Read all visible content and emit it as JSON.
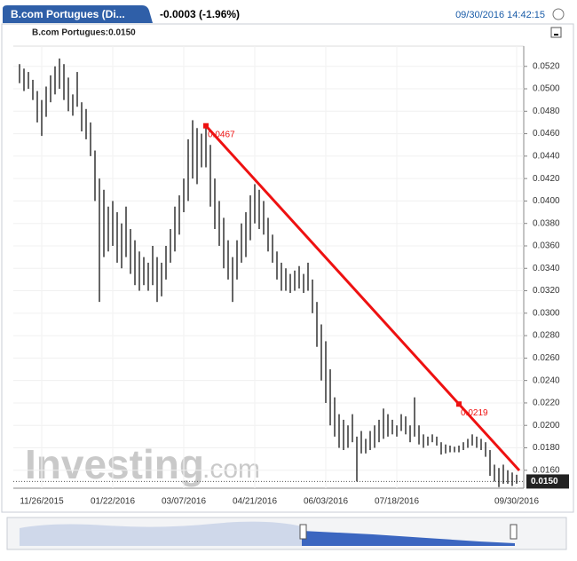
{
  "header": {
    "instrument": "B.com Portugues (Di...",
    "change": "-0.0003 (-1.96%)",
    "timestamp": "09/30/2016 14:42:15",
    "legend": "B.com Portugues:0.0150"
  },
  "chart_data": {
    "type": "ohlc",
    "watermark": "Investing",
    "watermark_suffix": ".com",
    "color": "#000000",
    "grid": true,
    "categories": [
      null,
      null,
      null,
      null,
      null,
      "11/26/2015",
      null,
      null,
      null,
      null,
      null,
      null,
      null,
      null,
      null,
      null,
      null,
      null,
      null,
      null,
      null,
      "01/22/2016",
      null,
      null,
      null,
      null,
      null,
      null,
      null,
      null,
      null,
      null,
      null,
      null,
      null,
      null,
      null,
      "03/07/2016",
      null,
      null,
      null,
      null,
      null,
      null,
      null,
      null,
      null,
      null,
      null,
      null,
      null,
      null,
      null,
      "04/21/2016",
      null,
      null,
      null,
      null,
      null,
      null,
      null,
      null,
      null,
      null,
      null,
      null,
      null,
      null,
      null,
      "06/03/2016",
      null,
      null,
      null,
      null,
      null,
      null,
      null,
      null,
      null,
      null,
      null,
      null,
      null,
      null,
      null,
      "07/18/2016",
      null,
      null,
      null,
      null,
      null,
      null,
      null,
      null,
      null,
      null,
      null,
      null,
      null,
      null,
      null,
      null,
      null,
      null,
      null,
      null,
      null,
      null,
      null,
      null,
      null,
      null,
      "09/30/2016"
    ],
    "high": [
      0.0522,
      0.0518,
      0.0515,
      0.0508,
      0.0498,
      0.049,
      0.0502,
      0.0512,
      0.052,
      0.0527,
      0.0522,
      0.051,
      0.0495,
      0.0515,
      0.0488,
      0.0482,
      0.047,
      0.0445,
      0.042,
      0.041,
      0.0395,
      0.04,
      0.039,
      0.038,
      0.0395,
      0.0375,
      0.0365,
      0.0355,
      0.035,
      0.0345,
      0.036,
      0.035,
      0.0345,
      0.036,
      0.0375,
      0.0395,
      0.0405,
      0.042,
      0.0455,
      0.0472,
      0.0465,
      0.046,
      0.0467,
      0.045,
      0.042,
      0.04,
      0.0385,
      0.0365,
      0.035,
      0.0365,
      0.038,
      0.039,
      0.0405,
      0.0415,
      0.041,
      0.04,
      0.0385,
      0.037,
      0.0355,
      0.0345,
      0.034,
      0.0335,
      0.0338,
      0.0342,
      0.0335,
      0.0345,
      0.033,
      0.031,
      0.029,
      0.0275,
      0.025,
      0.0225,
      0.021,
      0.0205,
      0.02,
      0.021,
      0.019,
      0.0195,
      0.0188,
      0.0195,
      0.02,
      0.0205,
      0.0215,
      0.021,
      0.0205,
      0.02,
      0.021,
      0.0208,
      0.02,
      0.0225,
      0.02,
      0.0192,
      0.019,
      0.0192,
      0.019,
      0.0185,
      0.0183,
      0.0182,
      0.0181,
      0.0182,
      0.0185,
      0.0188,
      0.0192,
      0.019,
      0.0188,
      0.0185,
      0.0178,
      0.0165,
      0.0162,
      0.0165,
      0.016,
      0.0158,
      0.0156
    ],
    "low": [
      0.0505,
      0.0498,
      0.05,
      0.049,
      0.047,
      0.0458,
      0.0475,
      0.0488,
      0.0495,
      0.05,
      0.049,
      0.048,
      0.0476,
      0.0484,
      0.0462,
      0.0455,
      0.044,
      0.04,
      0.031,
      0.035,
      0.0355,
      0.036,
      0.0345,
      0.034,
      0.035,
      0.0335,
      0.0325,
      0.032,
      0.0325,
      0.032,
      0.0325,
      0.031,
      0.0315,
      0.033,
      0.0345,
      0.0355,
      0.037,
      0.039,
      0.04,
      0.042,
      0.0415,
      0.043,
      0.043,
      0.0395,
      0.0375,
      0.036,
      0.034,
      0.033,
      0.031,
      0.033,
      0.0345,
      0.035,
      0.0365,
      0.038,
      0.0375,
      0.037,
      0.0355,
      0.0345,
      0.033,
      0.032,
      0.032,
      0.0318,
      0.032,
      0.0322,
      0.0318,
      0.032,
      0.03,
      0.027,
      0.024,
      0.022,
      0.02,
      0.019,
      0.018,
      0.0178,
      0.018,
      0.0185,
      0.015,
      0.0175,
      0.0175,
      0.0178,
      0.018,
      0.0185,
      0.0188,
      0.019,
      0.0192,
      0.019,
      0.0195,
      0.0192,
      0.0185,
      0.019,
      0.0183,
      0.018,
      0.0182,
      0.0185,
      0.0182,
      0.0174,
      0.0175,
      0.0176,
      0.0176,
      0.0176,
      0.0178,
      0.018,
      0.0182,
      0.018,
      0.0178,
      0.0172,
      0.0155,
      0.015,
      0.0145,
      0.0148,
      0.0148,
      0.0146,
      0.0148
    ],
    "ylim": [
      0.0144,
      0.0538
    ],
    "yticks": [
      {
        "value": 0.016,
        "label": "0.0160"
      },
      {
        "value": 0.018,
        "label": "0.0180"
      },
      {
        "value": 0.02,
        "label": "0.0200"
      },
      {
        "value": 0.022,
        "label": "0.0220"
      },
      {
        "value": 0.024,
        "label": "0.0240"
      },
      {
        "value": 0.026,
        "label": "0.0260"
      },
      {
        "value": 0.028,
        "label": "0.0280"
      },
      {
        "value": 0.03,
        "label": "0.0300"
      },
      {
        "value": 0.032,
        "label": "0.0320"
      },
      {
        "value": 0.034,
        "label": "0.0340"
      },
      {
        "value": 0.036,
        "label": "0.0360"
      },
      {
        "value": 0.038,
        "label": "0.0380"
      },
      {
        "value": 0.04,
        "label": "0.0400"
      },
      {
        "value": 0.042,
        "label": "0.0420"
      },
      {
        "value": 0.044,
        "label": "0.0440"
      },
      {
        "value": 0.046,
        "label": "0.0460"
      },
      {
        "value": 0.048,
        "label": "0.0480"
      },
      {
        "value": 0.05,
        "label": "0.0500"
      },
      {
        "value": 0.052,
        "label": "0.0520"
      }
    ],
    "trendline": {
      "color": "#ee1111",
      "points": [
        {
          "index": 42,
          "value": 0.0467
        },
        {
          "index": 99,
          "value": 0.0219
        }
      ]
    },
    "last_price": {
      "value": 0.015,
      "label": "0.0150"
    }
  }
}
